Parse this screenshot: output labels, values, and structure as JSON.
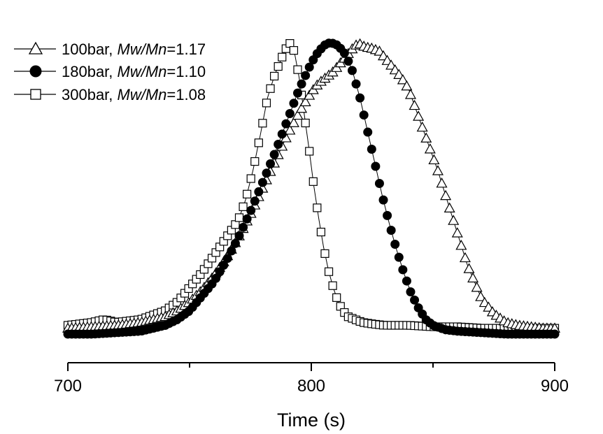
{
  "chart_data": {
    "type": "line",
    "title": "",
    "xlabel": "Time (s)",
    "ylabel": "",
    "xlim": [
      700,
      900
    ],
    "ylim": [
      0,
      1.05
    ],
    "x_ticks": [
      "700",
      "800",
      "900"
    ],
    "x_minor_ticks": [
      750,
      850
    ],
    "grid": false,
    "legend_position": "top-left",
    "series": [
      {
        "name_prefix": "100bar, ",
        "name_italic": "Mw/Mn",
        "name_suffix": "=1.17",
        "marker": "triangle-open",
        "color": "#000000",
        "x": [
          700,
          710,
          720,
          730,
          740,
          745,
          750,
          755,
          760,
          765,
          770,
          775,
          780,
          785,
          790,
          795,
          800,
          803,
          806,
          809,
          812,
          815,
          818,
          820,
          822,
          825,
          828,
          831,
          834,
          837,
          840,
          843,
          846,
          849,
          852,
          855,
          858,
          861,
          864,
          867,
          870,
          875,
          880,
          885,
          890,
          895,
          900
        ],
        "y": [
          0.02,
          0.025,
          0.03,
          0.04,
          0.06,
          0.08,
          0.11,
          0.15,
          0.2,
          0.26,
          0.33,
          0.41,
          0.5,
          0.59,
          0.68,
          0.76,
          0.83,
          0.86,
          0.88,
          0.9,
          0.93,
          0.96,
          0.99,
          0.995,
          0.985,
          0.98,
          0.97,
          0.94,
          0.91,
          0.88,
          0.84,
          0.77,
          0.7,
          0.63,
          0.56,
          0.48,
          0.4,
          0.32,
          0.24,
          0.18,
          0.12,
          0.07,
          0.04,
          0.03,
          0.025,
          0.02,
          0.02
        ]
      },
      {
        "name_prefix": "180bar, ",
        "name_italic": "Mw/Mn",
        "name_suffix": "=1.10",
        "marker": "circle-filled",
        "color": "#000000",
        "x": [
          700,
          710,
          720,
          730,
          740,
          745,
          750,
          755,
          760,
          765,
          770,
          775,
          780,
          785,
          790,
          795,
          800,
          803,
          806,
          808,
          811,
          814,
          817,
          820,
          823,
          826,
          829,
          832,
          835,
          838,
          841,
          844,
          847,
          850,
          855,
          860,
          870,
          880,
          890,
          900
        ],
        "y": [
          0.0,
          0.0,
          0.005,
          0.01,
          0.03,
          0.05,
          0.08,
          0.13,
          0.18,
          0.25,
          0.33,
          0.42,
          0.52,
          0.62,
          0.73,
          0.84,
          0.93,
          0.97,
          0.995,
          1.0,
          0.99,
          0.96,
          0.9,
          0.81,
          0.7,
          0.59,
          0.48,
          0.38,
          0.29,
          0.21,
          0.14,
          0.09,
          0.05,
          0.03,
          0.015,
          0.01,
          0.005,
          0.0,
          0.0,
          0.0
        ]
      },
      {
        "name_prefix": "300bar, ",
        "name_italic": "Mw/Mn",
        "name_suffix": "=1.08",
        "marker": "square-open",
        "color": "#000000",
        "x": [
          700,
          710,
          715,
          720,
          730,
          740,
          745,
          750,
          755,
          760,
          765,
          770,
          773,
          776,
          779,
          782,
          785,
          787,
          789,
          791,
          793,
          795,
          797,
          799,
          801,
          803,
          805,
          807,
          809,
          811,
          813,
          815,
          818,
          821,
          825,
          830,
          840,
          850,
          860,
          870,
          880,
          890,
          900
        ],
        "y": [
          0.03,
          0.04,
          0.05,
          0.04,
          0.05,
          0.08,
          0.11,
          0.16,
          0.21,
          0.27,
          0.33,
          0.39,
          0.46,
          0.56,
          0.68,
          0.81,
          0.89,
          0.93,
          0.97,
          1.0,
          0.97,
          0.88,
          0.76,
          0.64,
          0.51,
          0.4,
          0.3,
          0.22,
          0.16,
          0.11,
          0.08,
          0.06,
          0.05,
          0.04,
          0.035,
          0.03,
          0.03,
          0.025,
          0.025,
          0.02,
          0.02,
          0.02,
          0.02
        ]
      }
    ]
  }
}
